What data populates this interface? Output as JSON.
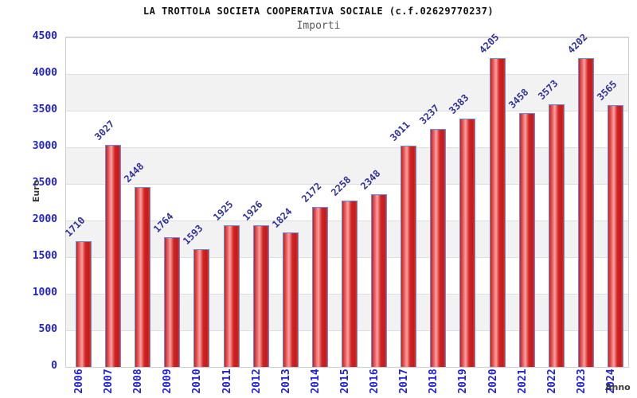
{
  "chart_data": {
    "type": "bar",
    "title": "LA TROTTOLA SOCIETA COOPERATIVA SOCIALE (c.f.02629770237)",
    "subtitle": "Importi",
    "xlabel": "Anno",
    "ylabel": "Euro",
    "categories": [
      "2006",
      "2007",
      "2008",
      "2009",
      "2010",
      "2011",
      "2012",
      "2013",
      "2014",
      "2015",
      "2016",
      "2017",
      "2018",
      "2019",
      "2020",
      "2021",
      "2022",
      "2023",
      "2024"
    ],
    "values": [
      1710,
      3027,
      2448,
      1764,
      1593,
      1925,
      1926,
      1824,
      2172,
      2258,
      2348,
      3011,
      3237,
      3383,
      4205,
      3458,
      3573,
      4202,
      3565
    ],
    "ylim": [
      0,
      4500
    ],
    "ytick_step": 500,
    "grid": true,
    "legend": "none",
    "colors": {
      "bar_fill": "#d42424",
      "bar_highlight": "#f5a3a3",
      "bar_border": "#5b92e5",
      "tick_label": "#2222dd",
      "value_label": "#31319c",
      "axis_label": "#3d3d3d",
      "band": "#f2f2f2",
      "gridline": "#dedede",
      "plot_border": "#cfcfcf"
    }
  }
}
